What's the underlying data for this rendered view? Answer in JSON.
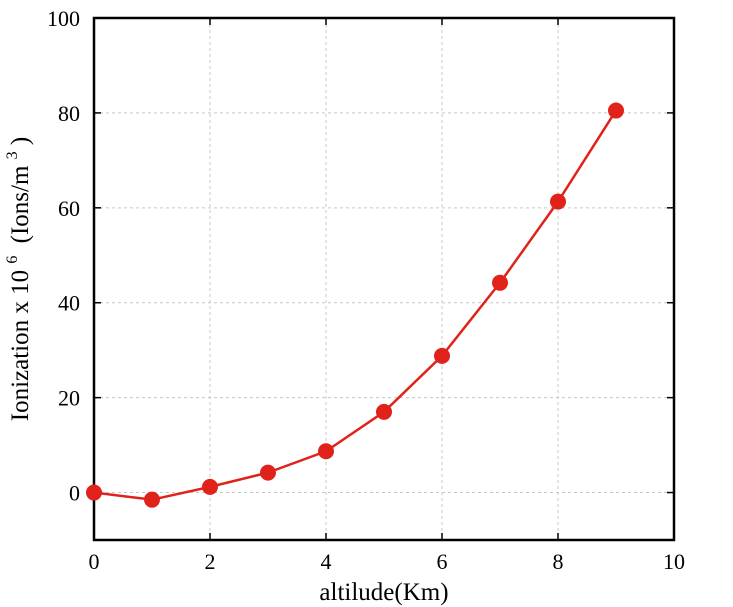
{
  "chart_data": {
    "type": "line",
    "title": "",
    "xlabel": "altilude(Km)",
    "ylabel": {
      "main": "Ionization x 10",
      "exp": "6",
      "unit_open": "(Ions/m",
      "unit_exp": "3",
      "unit_close": ")"
    },
    "xlim": [
      0,
      10
    ],
    "ylim": [
      -10,
      100
    ],
    "xticks": [
      0,
      2,
      4,
      6,
      8,
      10
    ],
    "yticks": [
      0,
      20,
      40,
      60,
      80,
      100
    ],
    "grid": true,
    "series": [
      {
        "color": "#e0221a",
        "x": [
          0,
          1,
          2,
          3,
          4,
          5,
          6,
          7,
          8,
          9
        ],
        "y": [
          0,
          -1.5,
          1.2,
          4.2,
          8.7,
          17.0,
          28.8,
          44.2,
          61.3,
          80.5
        ]
      }
    ]
  }
}
